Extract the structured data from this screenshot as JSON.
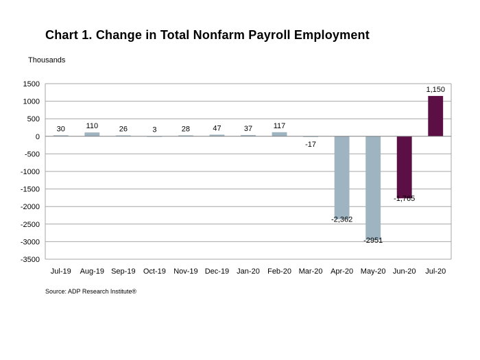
{
  "title": "Chart 1. Change in Total Nonfarm Payroll Employment",
  "units_label": "Thousands",
  "source": "Source: ADP Research Institute®",
  "colors": {
    "highlight": "#5b0f45",
    "base": "#9fb4c1",
    "grid": "#a6a6a6"
  },
  "chart_data": {
    "type": "bar",
    "categories": [
      "Jul-19",
      "Aug-19",
      "Sep-19",
      "Oct-19",
      "Nov-19",
      "Dec-19",
      "Jan-20",
      "Feb-20",
      "Mar-20",
      "Apr-20",
      "May-20",
      "Jun-20",
      "Jul-20"
    ],
    "values": [
      30,
      110,
      26,
      3,
      28,
      47,
      37,
      117,
      -17,
      -2362,
      -2951,
      -1765,
      1150
    ],
    "data_labels": [
      "30",
      "110",
      "26",
      "3",
      "28",
      "47",
      "37",
      "117",
      "-17",
      "-2,362",
      "-2951",
      "-1,765",
      "1,150"
    ],
    "highlighted": [
      false,
      false,
      false,
      false,
      false,
      false,
      false,
      false,
      false,
      false,
      false,
      true,
      true
    ],
    "ylabel": "Thousands",
    "ylim": [
      -3500,
      1500
    ],
    "yticks": [
      1500,
      1000,
      500,
      0,
      -500,
      -1000,
      -1500,
      -2000,
      -2500,
      -3000,
      -3500
    ],
    "grid": true,
    "legend": "none"
  }
}
